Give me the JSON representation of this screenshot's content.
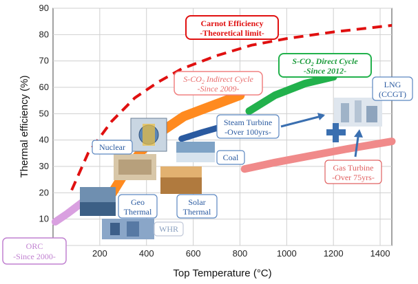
{
  "chart_data": {
    "type": "line",
    "xlabel": "Top Temperature (",
    "xlabel_unit": "°C)",
    "ylabel": "Thermal efficiency (%)",
    "xlim": [
      0,
      1450
    ],
    "ylim": [
      0,
      90
    ],
    "x_ticks": [
      200,
      400,
      600,
      800,
      1000,
      1200,
      1400
    ],
    "y_ticks": [
      0,
      10,
      20,
      30,
      40,
      50,
      60,
      70,
      80,
      90
    ],
    "grid": true,
    "series": [
      {
        "name": "Carnot Efficiency",
        "style": "dashed",
        "color": "#e01010",
        "points": [
          [
            80,
            21
          ],
          [
            150,
            35
          ],
          [
            250,
            47
          ],
          [
            350,
            56
          ],
          [
            450,
            62
          ],
          [
            550,
            67
          ],
          [
            700,
            72
          ],
          [
            850,
            76
          ],
          [
            1000,
            78.5
          ],
          [
            1200,
            81
          ],
          [
            1450,
            83.5
          ]
        ]
      },
      {
        "name": "ORC",
        "color": "#d9a0e0",
        "points": [
          [
            10,
            9
          ],
          [
            60,
            12
          ],
          [
            120,
            16
          ],
          [
            160,
            19
          ]
        ]
      },
      {
        "name": "S-CO2 Indirect Cycle",
        "color": "#ff8a1f",
        "points": [
          [
            240,
            18
          ],
          [
            310,
            28
          ],
          [
            380,
            36
          ],
          [
            460,
            43
          ],
          [
            560,
            49
          ],
          [
            680,
            53
          ],
          [
            800,
            57
          ]
        ]
      },
      {
        "name": "S-CO2 Direct Cycle",
        "color": "#22b14c",
        "points": [
          [
            840,
            51
          ],
          [
            950,
            57
          ],
          [
            1080,
            61.5
          ],
          [
            1200,
            64
          ]
        ]
      },
      {
        "name": "Steam Turbine",
        "color": "#2a5aa0",
        "points": [
          [
            550,
            40.5
          ],
          [
            640,
            43
          ],
          [
            740,
            45.5
          ],
          [
            800,
            47
          ]
        ]
      },
      {
        "name": "Gas Turbine",
        "color": "#f08a8a",
        "points": [
          [
            820,
            29
          ],
          [
            950,
            31.5
          ],
          [
            1100,
            34
          ],
          [
            1250,
            36.5
          ],
          [
            1450,
            39.5
          ]
        ]
      }
    ],
    "annotations": {
      "carnot_1": "Carnot Efficiency",
      "carnot_2": "-Theoretical limit-",
      "direct_1": "S-CO",
      "direct_sub": "2",
      "direct_2": " Direct Cycle",
      "direct_3": "-Since 2012-",
      "indirect_1": "S-CO",
      "indirect_sub": "2",
      "indirect_2": " Indirect Cycle",
      "indirect_3": "-Since 2009-",
      "steam_1": "Steam Turbine",
      "steam_2": "-Over 100yrs-",
      "lng_1": "LNG",
      "lng_2": "(CCGT)",
      "gas_1": "Gas Turbine",
      "gas_2": "-Over 75yrs-",
      "nuclear": "Nuclear",
      "coal": "Coal",
      "geo_1": "Geo",
      "geo_2": "Thermal",
      "solar_1": "Solar",
      "solar_2": "Thermal",
      "whr": "WHR",
      "orc_1": "ORC",
      "orc_2": "-Since 2000-"
    },
    "colors": {
      "carnot": "#e01010",
      "direct": "#1a9a3a",
      "indirect": "#e86a6a",
      "steam": "#2a5aa0",
      "gas": "#e06060",
      "orc": "#c080d0",
      "box_blue": "#5a86c0"
    }
  }
}
